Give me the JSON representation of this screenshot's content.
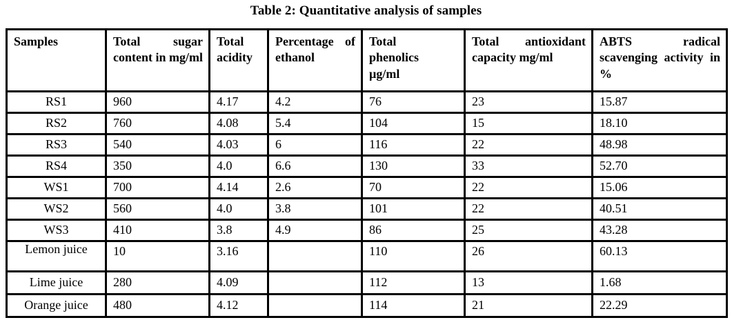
{
  "title": "Table 2: Quantitative analysis of samples",
  "table": {
    "columns": [
      "Samples",
      "Total sugar content in mg/ml",
      "Total acidity",
      "Percentage of ethanol",
      "Total phenolics µg/ml",
      "Total antioxidant capacity mg/ml",
      "ABTS radical scavenging activity in %"
    ],
    "rows": [
      {
        "sample": "RS1",
        "values": [
          "960",
          "4.17",
          "4.2",
          "76",
          "23",
          "15.87"
        ]
      },
      {
        "sample": "RS2",
        "values": [
          "760",
          "4.08",
          "5.4",
          "104",
          "15",
          "18.10"
        ]
      },
      {
        "sample": "RS3",
        "values": [
          "540",
          "4.03",
          "6",
          "116",
          "22",
          "48.98"
        ]
      },
      {
        "sample": "RS4",
        "values": [
          "350",
          "4.0",
          "6.6",
          "130",
          "33",
          "52.70"
        ]
      },
      {
        "sample": "WS1",
        "values": [
          "700",
          "4.14",
          "2.6",
          "70",
          "22",
          "15.06"
        ]
      },
      {
        "sample": "WS2",
        "values": [
          "560",
          "4.0",
          "3.8",
          "101",
          "22",
          "40.51"
        ]
      },
      {
        "sample": "WS3",
        "values": [
          "410",
          "3.8",
          "4.9",
          "86",
          "25",
          "43.28"
        ]
      },
      {
        "sample": "Lemon juice",
        "values": [
          "10",
          "3.16",
          "",
          "110",
          "26",
          "60.13"
        ]
      },
      {
        "sample": "Lime juice",
        "values": [
          "280",
          "4.09",
          "",
          "112",
          "13",
          "1.68"
        ]
      },
      {
        "sample": "Orange juice",
        "values": [
          "480",
          "4.12",
          "",
          "114",
          "21",
          "22.29"
        ]
      }
    ],
    "text_color": "#000000",
    "border_color": "#000000",
    "background_color": "#ffffff"
  }
}
